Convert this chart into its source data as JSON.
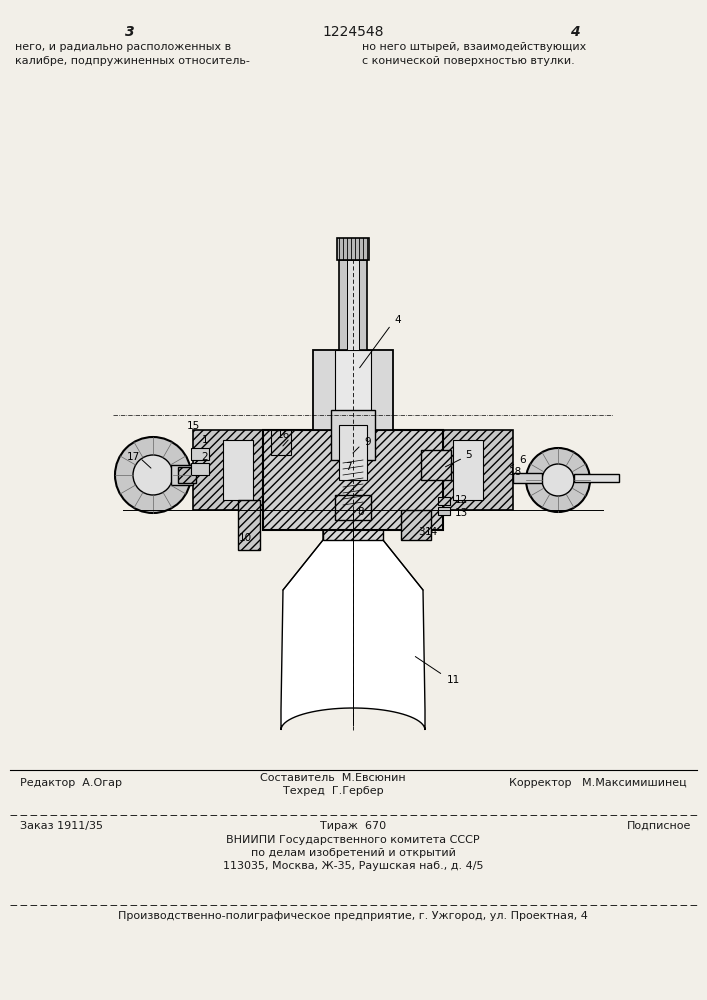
{
  "page_color": "#f2efe8",
  "text_color": "#1a1a1a",
  "line_color": "#1a1a1a",
  "hatch_color": "#333333",
  "part_fill_light": "#e8e8e8",
  "part_fill_mid": "#d0d0d0",
  "part_fill_dark": "#b0b0b0",
  "page_num_left": "3",
  "page_num_center": "1224548",
  "page_num_right": "4",
  "top_left_text": "него, и радиально расположенных в\nкалибре, подпружиненных относитель-",
  "top_right_text": "но него штырей, взаимодействующих\nс конической поверхностью втулки.",
  "footer_line1_left": "Редактор  А.Огар",
  "footer_line1_center_top": "Составитель  М.Евсюнин",
  "footer_line1_center_bottom": "Техред  Г.Гербер",
  "footer_line1_right": "Корректор   М.Максимишинец",
  "footer_line2_left": "Заказ 1911/35",
  "footer_line2_center": "Тираж  670",
  "footer_line2_right": "Подписное",
  "footer_line3": "ВНИИПИ Государственного комитета СССР",
  "footer_line4": "по делам изобретений и открытий",
  "footer_line5": "113035, Москва, Ж-35, Раушская наб., д. 4/5",
  "footer_line6": "Производственно-полиграфическое предприятие, г. Ужгород, ул. Проектная, 4"
}
